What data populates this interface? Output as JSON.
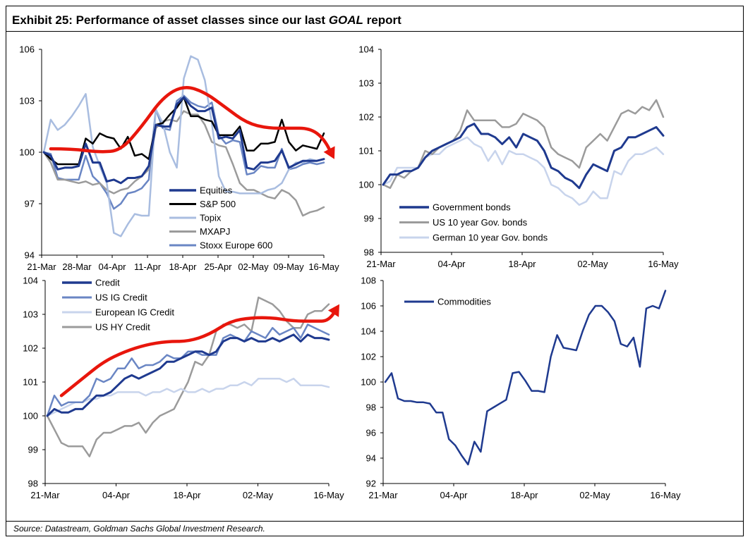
{
  "title": {
    "prefix": "Exhibit 25: Performance of asset classes since our last ",
    "emphasis": "GOAL",
    "suffix": " report"
  },
  "source": "Source: Datastream, Goldman Sachs Global Investment Research.",
  "colors": {
    "navy": "#1f3a8f",
    "black": "#000000",
    "light_blue": "#a9bde0",
    "grey": "#9b9b9b",
    "mid_blue": "#6a86c4",
    "pale_blue": "#c8d4ec",
    "red_arrow": "#e8160c"
  },
  "chart_data": [
    {
      "id": "equities",
      "type": "line",
      "xlabel": "",
      "ylabel": "",
      "x_ticks": [
        "21-Mar",
        "28-Mar",
        "04-Apr",
        "11-Apr",
        "18-Apr",
        "25-Apr",
        "02-May",
        "09-May",
        "16-May"
      ],
      "y_ticks": [
        94,
        97,
        100,
        103,
        106
      ],
      "ylim": [
        94,
        106
      ],
      "xlim": [
        0,
        40
      ],
      "legend_position": "bottom-center",
      "series": [
        {
          "name": "Equities",
          "color": "#1f3a8f",
          "width": 3,
          "values": [
            100,
            99.8,
            99,
            99.1,
            99.1,
            99.2,
            100.5,
            99.4,
            99.4,
            98.3,
            98.4,
            98.2,
            98.5,
            98.5,
            98.6,
            99.2,
            101.6,
            101.5,
            101.5,
            102.8,
            103.2,
            102.7,
            102.4,
            102.4,
            102.6,
            100.8,
            100.9,
            100.8,
            101.3,
            99.1,
            99,
            99.4,
            99.4,
            99.5,
            100.1,
            99.1,
            99.3,
            99.5,
            99.5,
            99.5,
            99.6
          ]
        },
        {
          "name": "S&P 500",
          "color": "#000000",
          "width": 2.5,
          "values": [
            100,
            99.6,
            99.3,
            99.3,
            99.3,
            99.3,
            100.8,
            100.5,
            101.1,
            100.9,
            100.8,
            100.2,
            100.9,
            99.8,
            99.9,
            99.6,
            101.6,
            101.7,
            102.2,
            102.6,
            103.2,
            102.1,
            102.1,
            101.9,
            101.8,
            101,
            101,
            101,
            101.5,
            100.1,
            100.1,
            100.5,
            100.5,
            100.6,
            101.9,
            100.6,
            100.1,
            100.4,
            100.3,
            100.2,
            101.1
          ]
        },
        {
          "name": "Topix",
          "color": "#a9bde0",
          "width": 2.5,
          "values": [
            100,
            101.9,
            101.3,
            101.6,
            102.1,
            102.7,
            103.4,
            100.3,
            99.2,
            98.2,
            95.3,
            95.1,
            95.8,
            96.4,
            96.3,
            96.3,
            102.5,
            101.7,
            100,
            99.1,
            104.3,
            105.6,
            105.4,
            104.2,
            101.7,
            98.6,
            97.7,
            97.7,
            97.6,
            97.6,
            97.6,
            97.6,
            97.8,
            97.9,
            98.2,
            99,
            99.4,
            99.4,
            99.6,
            99.5,
            99.6
          ]
        },
        {
          "name": "MXAPJ",
          "color": "#9b9b9b",
          "width": 2.5,
          "values": [
            100,
            99.4,
            98.4,
            98.4,
            98.3,
            98.2,
            98.3,
            98.1,
            98.2,
            97.8,
            97.6,
            97.8,
            97.9,
            98.3,
            98.6,
            99,
            101.4,
            101.8,
            101.9,
            101.8,
            102.4,
            102.2,
            102.2,
            101.6,
            100.6,
            100.4,
            100.3,
            99.3,
            98.2,
            97.8,
            97.8,
            97.6,
            97.4,
            97.3,
            97.8,
            97.6,
            97.2,
            96.3,
            96.5,
            96.6,
            96.8
          ]
        },
        {
          "name": "Stoxx Europe 600",
          "color": "#6a86c4",
          "width": 2.5,
          "values": [
            100,
            99.9,
            98.5,
            98.4,
            98.4,
            98.4,
            99.8,
            98.6,
            98.2,
            97.6,
            96.7,
            97,
            97.6,
            97.7,
            97.9,
            98.4,
            102.5,
            101.4,
            101.3,
            103,
            103.3,
            102.9,
            102.7,
            102.6,
            102.9,
            101,
            100.5,
            100.7,
            100.6,
            98.7,
            98.8,
            99.2,
            99.1,
            99.1,
            100.2,
            99,
            99.1,
            99.3,
            99.4,
            99.3,
            99.4
          ]
        }
      ],
      "arrow": {
        "values_x": [
          1,
          4,
          8,
          11,
          14,
          17,
          20,
          23,
          26,
          29,
          32,
          35,
          38,
          40,
          41.5
        ],
        "values_y": [
          100.2,
          100.2,
          100,
          100.1,
          101.5,
          103.2,
          103.9,
          103.5,
          102.6,
          101.7,
          101.4,
          101.4,
          101.4,
          100.8,
          99.6
        ]
      }
    },
    {
      "id": "bonds",
      "type": "line",
      "xlabel": "",
      "ylabel": "",
      "x_ticks": [
        "21-Mar",
        "04-Apr",
        "18-Apr",
        "02-May",
        "16-May"
      ],
      "y_ticks": [
        98,
        99,
        100,
        101,
        102,
        103,
        104
      ],
      "ylim": [
        98,
        104
      ],
      "xlim": [
        0,
        40
      ],
      "legend_position": "bottom-center",
      "series": [
        {
          "name": "Government bonds",
          "color": "#1f3a8f",
          "width": 3,
          "values": [
            100,
            100.3,
            100.3,
            100.4,
            100.4,
            100.5,
            100.8,
            101,
            101.1,
            101.2,
            101.3,
            101.4,
            101.7,
            101.8,
            101.5,
            101.5,
            101.4,
            101.2,
            101.4,
            101.1,
            101.5,
            101.4,
            101.3,
            101,
            100.5,
            100.4,
            100.2,
            100.1,
            99.9,
            100.3,
            100.6,
            100.5,
            100.4,
            101,
            101.1,
            101.4,
            101.4,
            101.5,
            101.6,
            101.7,
            101.45
          ]
        },
        {
          "name": "US 10 year Gov. bonds",
          "color": "#9b9b9b",
          "width": 2.5,
          "values": [
            100,
            99.9,
            100.3,
            100.2,
            100.4,
            100.5,
            101,
            100.9,
            101.1,
            101.2,
            101.3,
            101.6,
            102.2,
            101.9,
            101.9,
            101.9,
            101.9,
            101.7,
            101.7,
            101.8,
            102.1,
            102,
            101.9,
            101.7,
            101.1,
            100.9,
            100.8,
            100.7,
            100.5,
            101.1,
            101.3,
            101.5,
            101.3,
            101.7,
            102.1,
            102.2,
            102.1,
            102.3,
            102.2,
            102.5,
            102
          ]
        },
        {
          "name": "German 10 year Gov. bonds",
          "color": "#c8d4ec",
          "width": 2.5,
          "values": [
            100,
            100.1,
            100.5,
            100.5,
            100.5,
            100.5,
            100.8,
            100.9,
            100.9,
            101.1,
            101.2,
            101.3,
            101.4,
            101.2,
            101.1,
            100.7,
            101,
            100.6,
            101,
            100.9,
            100.9,
            100.8,
            100.7,
            100.5,
            100,
            99.9,
            99.7,
            99.6,
            99.4,
            99.5,
            99.8,
            99.6,
            99.6,
            100.4,
            100.3,
            100.7,
            100.9,
            100.9,
            101,
            101.1,
            100.9
          ]
        }
      ]
    },
    {
      "id": "credit",
      "type": "line",
      "xlabel": "",
      "ylabel": "",
      "x_ticks": [
        "21-Mar",
        "04-Apr",
        "18-Apr",
        "02-May",
        "16-May"
      ],
      "y_ticks": [
        98,
        99,
        100,
        101,
        102,
        103,
        104
      ],
      "ylim": [
        98,
        104
      ],
      "xlim": [
        0,
        40
      ],
      "legend_position": "top-left",
      "series": [
        {
          "name": "Credit",
          "color": "#1f3a8f",
          "width": 3,
          "values": [
            100,
            100.2,
            100.1,
            100.1,
            100.2,
            100.2,
            100.4,
            100.6,
            100.6,
            100.7,
            100.9,
            101.1,
            101.2,
            101.1,
            101.2,
            101.3,
            101.4,
            101.6,
            101.6,
            101.7,
            101.8,
            101.9,
            101.9,
            101.8,
            101.9,
            102.2,
            102.3,
            102.3,
            102.2,
            102.3,
            102.2,
            102.2,
            102.3,
            102.2,
            102.3,
            102.4,
            102.2,
            102.4,
            102.3,
            102.3,
            102.25
          ]
        },
        {
          "name": "US IG Credit",
          "color": "#6a86c4",
          "width": 2.5,
          "values": [
            100,
            100.6,
            100.3,
            100.4,
            100.4,
            100.4,
            100.6,
            101.1,
            101,
            101.1,
            101.4,
            101.4,
            101.7,
            101.4,
            101.5,
            101.5,
            101.6,
            101.8,
            101.7,
            101.7,
            101.9,
            101.9,
            101.8,
            101.8,
            101.8,
            102.3,
            102.4,
            102.3,
            102.2,
            102.5,
            102.4,
            102.3,
            102.6,
            102.4,
            102.5,
            102.6,
            102.3,
            102.7,
            102.6,
            102.5,
            102.4
          ]
        },
        {
          "name": "European IG Credit",
          "color": "#c8d4ec",
          "width": 2.5,
          "values": [
            100,
            100.1,
            100.2,
            100.3,
            100.4,
            100.4,
            100.5,
            100.5,
            100.6,
            100.6,
            100.7,
            100.7,
            100.7,
            100.7,
            100.6,
            100.7,
            100.7,
            100.8,
            100.7,
            100.8,
            100.7,
            100.7,
            100.8,
            100.7,
            100.8,
            100.8,
            100.9,
            100.9,
            101,
            100.9,
            101.1,
            101.1,
            101.1,
            101.1,
            101,
            101.1,
            100.9,
            100.9,
            100.9,
            100.9,
            100.85
          ]
        },
        {
          "name": "US HY Credit",
          "color": "#9b9b9b",
          "width": 2.5,
          "values": [
            100,
            99.6,
            99.2,
            99.1,
            99.1,
            99.1,
            98.8,
            99.3,
            99.5,
            99.5,
            99.6,
            99.7,
            99.7,
            99.8,
            99.5,
            99.8,
            100,
            100.1,
            100.2,
            100.6,
            101,
            101.6,
            101.5,
            101.8,
            102.5,
            102.7,
            102.7,
            102.6,
            102.7,
            102.5,
            103.5,
            103.4,
            103.3,
            103.1,
            102.8,
            102.6,
            102.6,
            103,
            103.1,
            103.1,
            103.3
          ]
        }
      ],
      "arrow": {
        "values_x": [
          2,
          5,
          8,
          11,
          14,
          17,
          20,
          23,
          26,
          29,
          32,
          35,
          38,
          40,
          41.5
        ],
        "values_y": [
          100.6,
          101.1,
          101.6,
          101.9,
          102.1,
          102.2,
          102.2,
          102.4,
          102.8,
          102.9,
          102.9,
          102.8,
          102.8,
          102.8,
          103.3
        ]
      }
    },
    {
      "id": "commodities",
      "type": "line",
      "xlabel": "",
      "ylabel": "",
      "x_ticks": [
        "21-Mar",
        "04-Apr",
        "18-Apr",
        "02-May",
        "16-May"
      ],
      "y_ticks": [
        92,
        94,
        96,
        98,
        100,
        102,
        104,
        106,
        108
      ],
      "ylim": [
        92,
        108
      ],
      "xlim": [
        0,
        40
      ],
      "legend_position": "top-left",
      "series": [
        {
          "name": "Commodities",
          "color": "#1f3a8f",
          "width": 2.5,
          "values": [
            100,
            100.7,
            98.7,
            98.5,
            98.5,
            98.4,
            98.4,
            98.3,
            97.6,
            97.6,
            95.5,
            95,
            94.2,
            93.5,
            95.3,
            94.5,
            97.7,
            98,
            98.3,
            98.6,
            100.7,
            100.8,
            100.1,
            99.3,
            99.3,
            99.2,
            102,
            103.7,
            102.7,
            102.6,
            102.5,
            104,
            105.3,
            106,
            106,
            105.5,
            104.8,
            103,
            102.8,
            103.5,
            101.2,
            105.8,
            106,
            105.8,
            107.2
          ]
        }
      ]
    }
  ]
}
